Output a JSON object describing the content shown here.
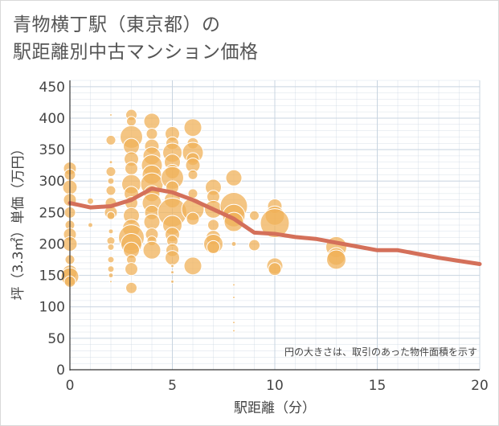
{
  "title": {
    "line1": "青物横丁駅（東京都）の",
    "line2": "駅距離別中古マンション価格"
  },
  "note": "円の大きさは、取引のあった物件面積を示す",
  "colors": {
    "bubble": "#f0b25a",
    "bubble_stroke": "#ffffff",
    "line": "#d4705a",
    "grid": "#c8d4e0",
    "axis": "#333333"
  },
  "chart_data": {
    "type": "scatter",
    "xlabel": "駅距離（分）",
    "ylabel": "坪（3.3㎡）単価（万円）",
    "xlim": [
      0,
      20
    ],
    "ylim": [
      0,
      460
    ],
    "xticks": [
      "0",
      "5",
      "10",
      "15",
      "20"
    ],
    "yticks": [
      "0",
      "50",
      "100",
      "150",
      "200",
      "250",
      "300",
      "350",
      "400",
      "450"
    ],
    "grid": true,
    "series": [
      {
        "type": "bubble",
        "points": [
          {
            "x": 0,
            "y": 320,
            "s": 8
          },
          {
            "x": 0,
            "y": 310,
            "s": 7
          },
          {
            "x": 0,
            "y": 290,
            "s": 9
          },
          {
            "x": 0,
            "y": 270,
            "s": 8
          },
          {
            "x": 0,
            "y": 250,
            "s": 7
          },
          {
            "x": 0,
            "y": 230,
            "s": 6
          },
          {
            "x": 0,
            "y": 215,
            "s": 8
          },
          {
            "x": 0,
            "y": 200,
            "s": 9
          },
          {
            "x": 0,
            "y": 175,
            "s": 6
          },
          {
            "x": 0,
            "y": 155,
            "s": 9
          },
          {
            "x": 0,
            "y": 148,
            "s": 11
          },
          {
            "x": 0,
            "y": 140,
            "s": 7
          },
          {
            "x": 1,
            "y": 268,
            "s": 4
          },
          {
            "x": 1,
            "y": 230,
            "s": 3
          },
          {
            "x": 2,
            "y": 405,
            "s": 1.5
          },
          {
            "x": 2,
            "y": 365,
            "s": 6
          },
          {
            "x": 2,
            "y": 330,
            "s": 2
          },
          {
            "x": 2,
            "y": 315,
            "s": 6
          },
          {
            "x": 2,
            "y": 300,
            "s": 4
          },
          {
            "x": 2,
            "y": 285,
            "s": 6
          },
          {
            "x": 2,
            "y": 265,
            "s": 7
          },
          {
            "x": 2,
            "y": 250,
            "s": 8
          },
          {
            "x": 2,
            "y": 245,
            "s": 5
          },
          {
            "x": 2,
            "y": 220,
            "s": 3
          },
          {
            "x": 2,
            "y": 205,
            "s": 5
          },
          {
            "x": 2,
            "y": 195,
            "s": 4
          },
          {
            "x": 2,
            "y": 175,
            "s": 4
          },
          {
            "x": 2,
            "y": 160,
            "s": 4
          },
          {
            "x": 2,
            "y": 150,
            "s": 3
          },
          {
            "x": 2,
            "y": 140,
            "s": 1.5
          },
          {
            "x": 3,
            "y": 405,
            "s": 7
          },
          {
            "x": 3,
            "y": 395,
            "s": 6
          },
          {
            "x": 3,
            "y": 370,
            "s": 14
          },
          {
            "x": 3,
            "y": 355,
            "s": 10
          },
          {
            "x": 3,
            "y": 335,
            "s": 9
          },
          {
            "x": 3,
            "y": 320,
            "s": 8
          },
          {
            "x": 3,
            "y": 295,
            "s": 12
          },
          {
            "x": 3,
            "y": 280,
            "s": 9
          },
          {
            "x": 3,
            "y": 265,
            "s": 8
          },
          {
            "x": 3,
            "y": 245,
            "s": 10
          },
          {
            "x": 3,
            "y": 225,
            "s": 11
          },
          {
            "x": 3,
            "y": 210,
            "s": 16
          },
          {
            "x": 3,
            "y": 200,
            "s": 13
          },
          {
            "x": 3,
            "y": 190,
            "s": 10
          },
          {
            "x": 3,
            "y": 175,
            "s": 6
          },
          {
            "x": 3,
            "y": 160,
            "s": 8
          },
          {
            "x": 3,
            "y": 130,
            "s": 7
          },
          {
            "x": 4,
            "y": 395,
            "s": 10
          },
          {
            "x": 4,
            "y": 375,
            "s": 7
          },
          {
            "x": 4,
            "y": 355,
            "s": 9
          },
          {
            "x": 4,
            "y": 340,
            "s": 11
          },
          {
            "x": 4,
            "y": 325,
            "s": 13
          },
          {
            "x": 4,
            "y": 310,
            "s": 12
          },
          {
            "x": 4,
            "y": 295,
            "s": 14
          },
          {
            "x": 4,
            "y": 280,
            "s": 10
          },
          {
            "x": 4,
            "y": 265,
            "s": 12
          },
          {
            "x": 4,
            "y": 250,
            "s": 9
          },
          {
            "x": 4,
            "y": 235,
            "s": 10
          },
          {
            "x": 4,
            "y": 215,
            "s": 8
          },
          {
            "x": 4,
            "y": 205,
            "s": 6
          },
          {
            "x": 4,
            "y": 190,
            "s": 11
          },
          {
            "x": 5,
            "y": 375,
            "s": 9
          },
          {
            "x": 5,
            "y": 360,
            "s": 8
          },
          {
            "x": 5,
            "y": 345,
            "s": 12
          },
          {
            "x": 5,
            "y": 330,
            "s": 10
          },
          {
            "x": 5,
            "y": 315,
            "s": 9
          },
          {
            "x": 5,
            "y": 305,
            "s": 14
          },
          {
            "x": 5,
            "y": 290,
            "s": 8
          },
          {
            "x": 5,
            "y": 270,
            "s": 10
          },
          {
            "x": 5,
            "y": 250,
            "s": 18
          },
          {
            "x": 5,
            "y": 230,
            "s": 12
          },
          {
            "x": 5,
            "y": 215,
            "s": 9
          },
          {
            "x": 5,
            "y": 205,
            "s": 7
          },
          {
            "x": 5,
            "y": 190,
            "s": 8
          },
          {
            "x": 5,
            "y": 178,
            "s": 9
          },
          {
            "x": 5,
            "y": 165,
            "s": 2
          },
          {
            "x": 5,
            "y": 155,
            "s": 2
          },
          {
            "x": 5,
            "y": 140,
            "s": 2
          },
          {
            "x": 6,
            "y": 385,
            "s": 11
          },
          {
            "x": 6,
            "y": 360,
            "s": 7
          },
          {
            "x": 6,
            "y": 345,
            "s": 13
          },
          {
            "x": 6,
            "y": 335,
            "s": 8
          },
          {
            "x": 6,
            "y": 325,
            "s": 9
          },
          {
            "x": 6,
            "y": 310,
            "s": 6
          },
          {
            "x": 6,
            "y": 280,
            "s": 6
          },
          {
            "x": 6,
            "y": 255,
            "s": 14
          },
          {
            "x": 6,
            "y": 240,
            "s": 8
          },
          {
            "x": 6,
            "y": 165,
            "s": 11
          },
          {
            "x": 7,
            "y": 290,
            "s": 10
          },
          {
            "x": 7,
            "y": 275,
            "s": 8
          },
          {
            "x": 7,
            "y": 255,
            "s": 11
          },
          {
            "x": 7,
            "y": 230,
            "s": 7
          },
          {
            "x": 7,
            "y": 210,
            "s": 9
          },
          {
            "x": 7,
            "y": 200,
            "s": 12
          },
          {
            "x": 7,
            "y": 195,
            "s": 8
          },
          {
            "x": 8,
            "y": 305,
            "s": 10
          },
          {
            "x": 8,
            "y": 260,
            "s": 17
          },
          {
            "x": 8,
            "y": 245,
            "s": 14
          },
          {
            "x": 8,
            "y": 235,
            "s": 12
          },
          {
            "x": 8,
            "y": 200,
            "s": 3
          },
          {
            "x": 8,
            "y": 135,
            "s": 1.5
          },
          {
            "x": 8,
            "y": 115,
            "s": 1.5
          },
          {
            "x": 8,
            "y": 75,
            "s": 1.5
          },
          {
            "x": 8,
            "y": 62,
            "s": 1.5
          },
          {
            "x": 9,
            "y": 245,
            "s": 6
          },
          {
            "x": 9,
            "y": 198,
            "s": 7
          },
          {
            "x": 10,
            "y": 260,
            "s": 9
          },
          {
            "x": 10,
            "y": 245,
            "s": 12
          },
          {
            "x": 10,
            "y": 233,
            "s": 18
          },
          {
            "x": 10,
            "y": 165,
            "s": 10
          },
          {
            "x": 10,
            "y": 160,
            "s": 8
          },
          {
            "x": 13,
            "y": 195,
            "s": 13
          },
          {
            "x": 13,
            "y": 180,
            "s": 11
          },
          {
            "x": 13,
            "y": 175,
            "s": 12
          }
        ]
      },
      {
        "type": "line",
        "x": [
          0,
          1,
          2,
          3,
          4,
          5,
          6,
          7,
          8,
          9,
          10,
          11,
          12,
          13,
          14,
          15,
          16,
          17,
          18,
          19,
          20
        ],
        "y": [
          265,
          258,
          260,
          270,
          288,
          282,
          270,
          255,
          240,
          218,
          216,
          211,
          208,
          202,
          196,
          190,
          190,
          184,
          178,
          173,
          168
        ]
      }
    ]
  }
}
